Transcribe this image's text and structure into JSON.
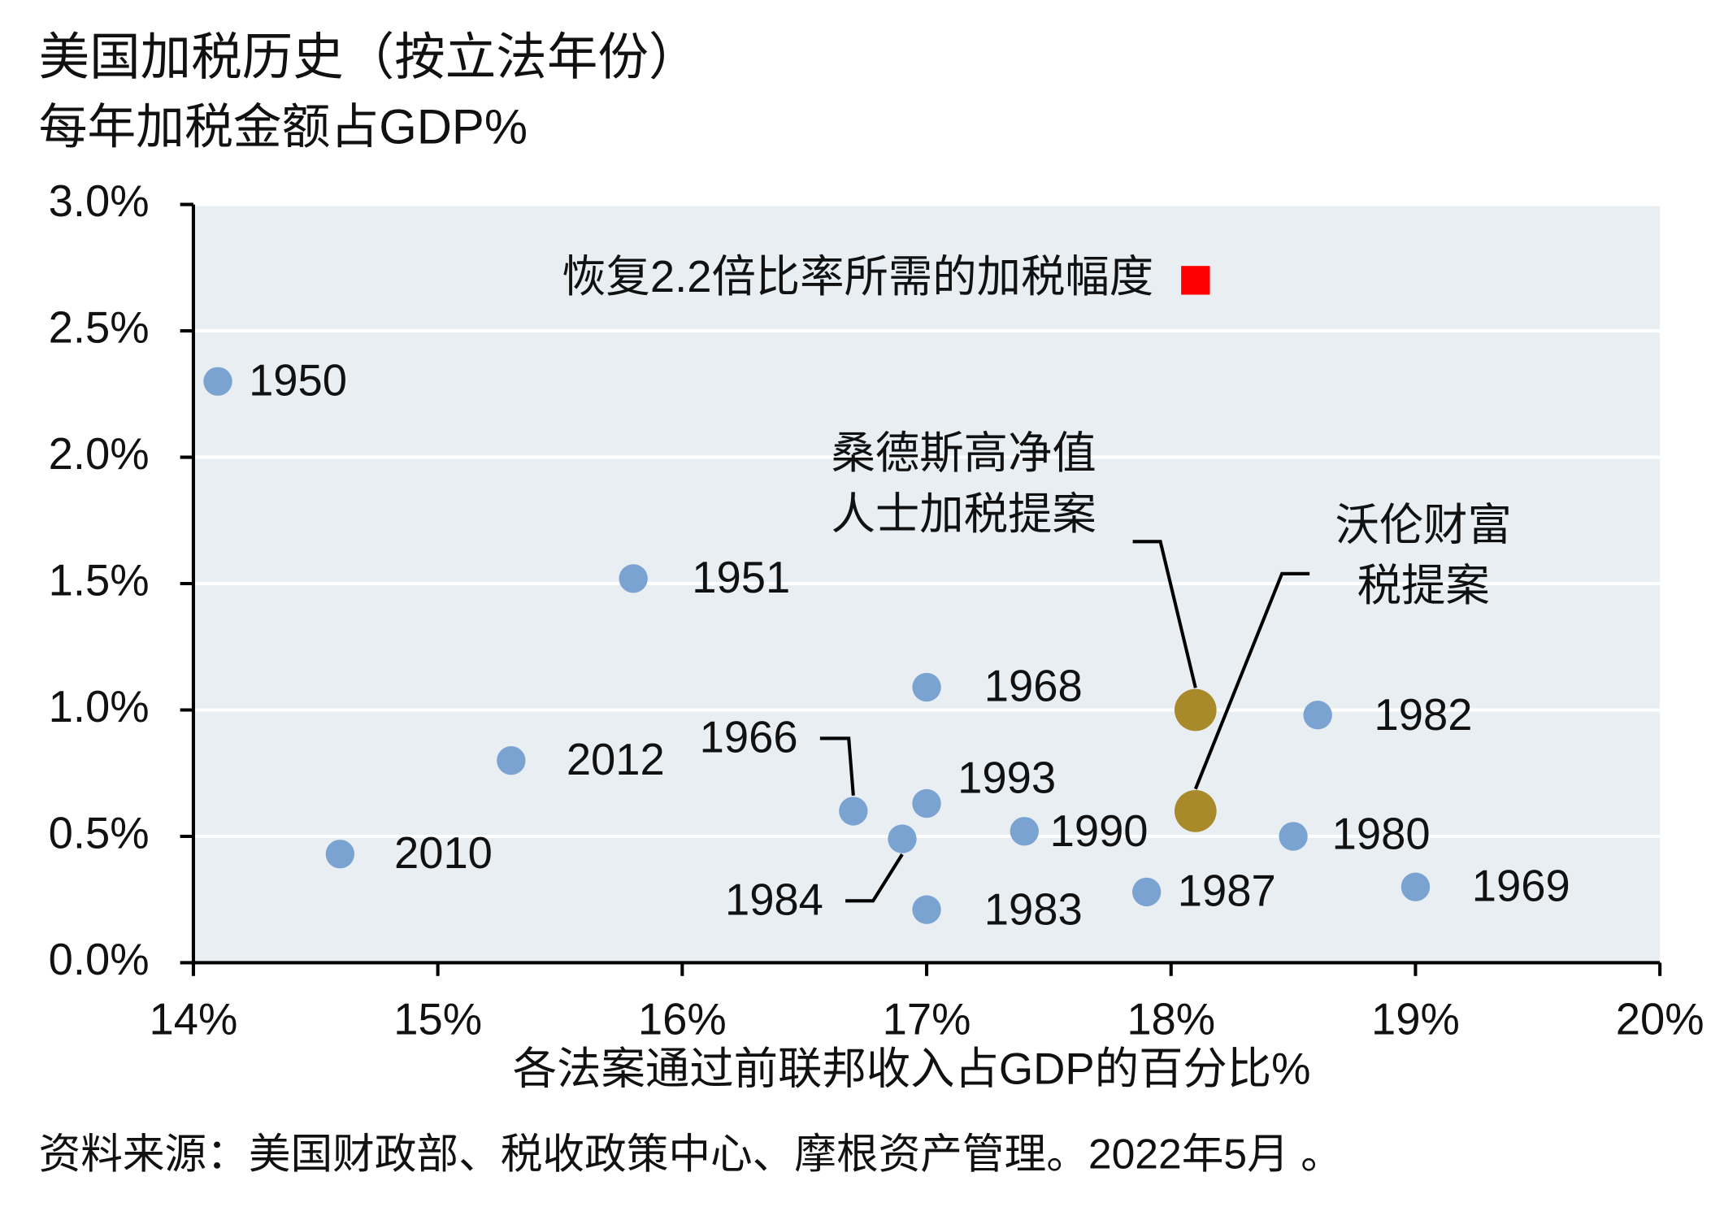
{
  "chart_data": {
    "type": "scatter",
    "title": "美国加税历史（按立法年份）",
    "subtitle": "每年加税金额占GDP%",
    "x_label": "各法案通过前联邦收入占GDP的百分比%",
    "source": "资料来源：美国财政部、税收政策中心、摩根资产管理。2022年5月 。",
    "xlim": [
      14,
      20
    ],
    "xticks": [
      {
        "value": 14,
        "label": "14%"
      },
      {
        "value": 15,
        "label": "15%"
      },
      {
        "value": 16,
        "label": "16%"
      },
      {
        "value": 17,
        "label": "17%"
      },
      {
        "value": 18,
        "label": "18%"
      },
      {
        "value": 19,
        "label": "19%"
      },
      {
        "value": 20,
        "label": "20%"
      }
    ],
    "ylim": [
      0,
      3
    ],
    "yticks": [
      {
        "value": 0,
        "label": "0.0%"
      },
      {
        "value": 0.5,
        "label": "0.5%"
      },
      {
        "value": 1,
        "label": "1.0%"
      },
      {
        "value": 1.5,
        "label": "1.5%"
      },
      {
        "value": 2,
        "label": "2.0%"
      },
      {
        "value": 2.5,
        "label": "2.5%"
      },
      {
        "value": 3,
        "label": "3.0%"
      }
    ],
    "grid": true,
    "color": "#7ba3d1",
    "points": [
      {
        "label": "1950",
        "x": 14.1,
        "y": 2.3
      },
      {
        "label": "1951",
        "x": 15.8,
        "y": 1.52
      },
      {
        "label": "1968",
        "x": 17.0,
        "y": 1.09
      },
      {
        "label": "1982",
        "x": 18.6,
        "y": 0.98
      },
      {
        "label": "2012",
        "x": 15.3,
        "y": 0.8
      },
      {
        "label": "1966",
        "x": 16.7,
        "y": 0.6
      },
      {
        "label": "1993",
        "x": 17.0,
        "y": 0.63
      },
      {
        "label": "1990",
        "x": 17.4,
        "y": 0.52
      },
      {
        "label": "1980",
        "x": 18.5,
        "y": 0.5
      },
      {
        "label": "1984",
        "x": 16.9,
        "y": 0.49
      },
      {
        "label": "2010",
        "x": 14.6,
        "y": 0.43
      },
      {
        "label": "1987",
        "x": 17.9,
        "y": 0.28
      },
      {
        "label": "1969",
        "x": 19.0,
        "y": 0.3
      },
      {
        "label": "1983",
        "x": 17.0,
        "y": 0.21
      }
    ],
    "proposal_color": "#a88a2a",
    "proposals": [
      {
        "label": [
          "桑德斯高净值",
          "人士加税提案"
        ],
        "x": 18.1,
        "y": 1.0
      },
      {
        "label": [
          "沃伦财富",
          "税提案"
        ],
        "x": 18.1,
        "y": 0.6
      }
    ],
    "target": {
      "label": "恢复2.2倍比率所需的加税幅度",
      "x": 18.1,
      "y": 2.7,
      "color": "#ff0000"
    }
  }
}
